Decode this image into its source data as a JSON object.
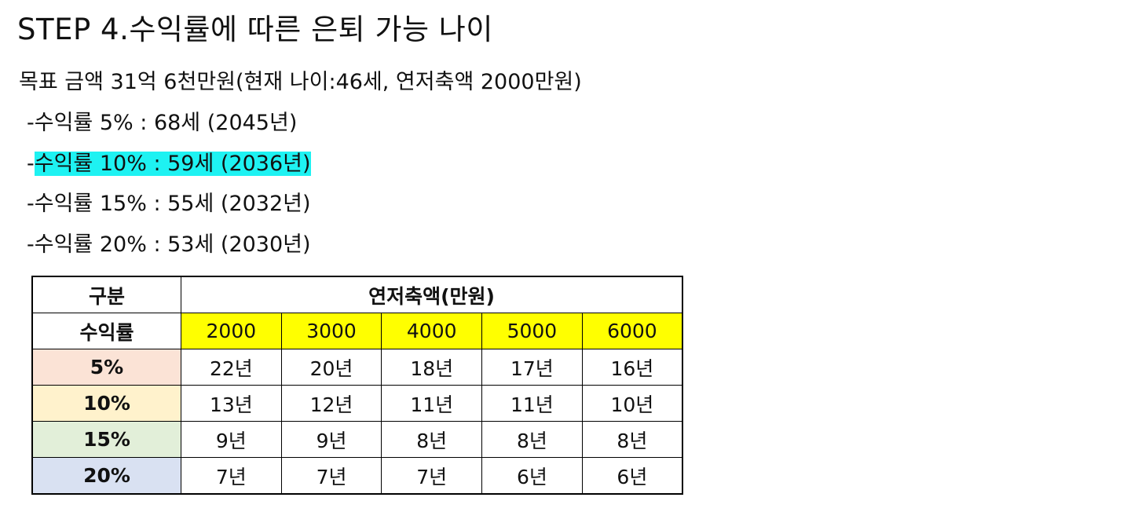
{
  "title": "STEP 4.수익률에 따른 은퇴 가능 나이",
  "goal": "목표 금액 31억 6천만원(현재 나이:46세, 연저축액 2000만원)",
  "items": [
    {
      "prefix": "-",
      "text": "수익률 5% : 68세 (2045년)"
    },
    {
      "prefix": "-",
      "text": "수익률 10% : 59세 (2036년)",
      "highlight_color": "#1ef2f2"
    },
    {
      "prefix": "-",
      "text": "수익률 15% : 55세 (2032년)"
    },
    {
      "prefix": "-",
      "text": "수익률 20% : 53세 (2030년)"
    }
  ],
  "table": {
    "corner_label": "구분",
    "group_header": "연저축액(만원)",
    "rate_header": "수익률",
    "amounts": [
      "2000",
      "3000",
      "4000",
      "5000",
      "6000"
    ],
    "amount_bg": "#ffff00",
    "rows": [
      {
        "rate": "5%",
        "color": "#fbe3d6",
        "values": [
          "22년",
          "20년",
          "18년",
          "17년",
          "16년"
        ]
      },
      {
        "rate": "10%",
        "color": "#fff2cc",
        "values": [
          "13년",
          "12년",
          "11년",
          "11년",
          "10년"
        ]
      },
      {
        "rate": "15%",
        "color": "#e2efd9",
        "values": [
          "9년",
          "9년",
          "8년",
          "8년",
          "8년"
        ]
      },
      {
        "rate": "20%",
        "color": "#d9e1f2",
        "values": [
          "7년",
          "7년",
          "7년",
          "6년",
          "6년"
        ]
      }
    ]
  }
}
